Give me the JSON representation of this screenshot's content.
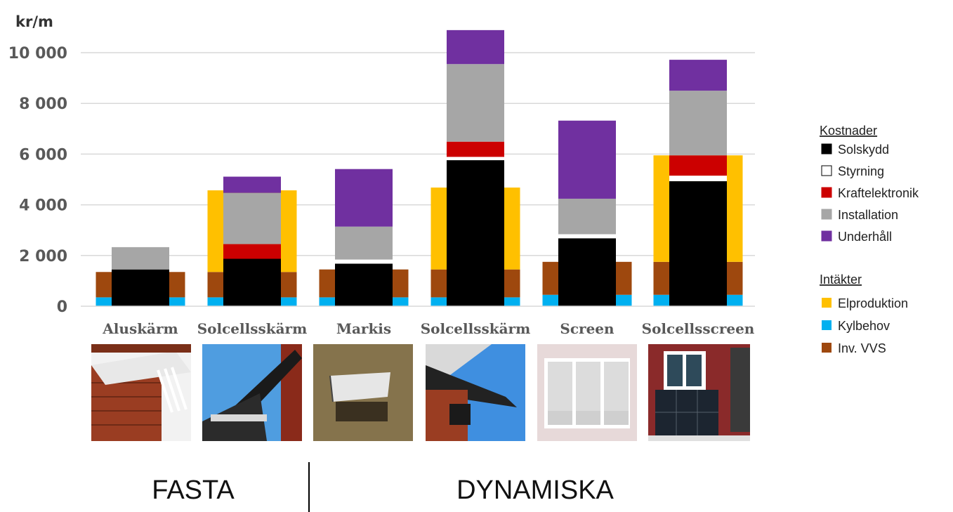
{
  "chart_data": {
    "type": "bar",
    "stacked": true,
    "ylabel": "kr/m",
    "ylim": [
      0,
      11000
    ],
    "yticks": [
      "0",
      "2 000",
      "4 000",
      "6 000",
      "8 000",
      "10 000"
    ],
    "ytick_values": [
      0,
      2000,
      4000,
      6000,
      8000,
      10000
    ],
    "grid": true,
    "categories": [
      "Aluskärm",
      "Solcellsskärm",
      "Markis",
      "Solcellsskärm",
      "Screen",
      "Solcellsscreen"
    ],
    "groups": [
      {
        "label": "FASTA",
        "categories": [
          0,
          1
        ]
      },
      {
        "label": "DYNAMISKA",
        "categories": [
          2,
          3,
          4,
          5
        ]
      }
    ],
    "legend": {
      "placement": "right",
      "costs_title": "Kostnader",
      "income_title": "Intäkter"
    },
    "cost_series": [
      {
        "name": "Solskydd",
        "color": "#000000",
        "values": [
          1450,
          1870,
          1680,
          5760,
          2680,
          4930
        ]
      },
      {
        "name": "Styrning",
        "color": "#ffffff",
        "values": [
          0,
          0,
          160,
          130,
          160,
          220
        ]
      },
      {
        "name": "Kraftelektronik",
        "color": "#cc0000",
        "values": [
          0,
          580,
          0,
          600,
          0,
          800
        ]
      },
      {
        "name": "Installation",
        "color": "#a6a6a6",
        "values": [
          880,
          2020,
          1300,
          3060,
          1400,
          2550
        ]
      },
      {
        "name": "Underhåll",
        "color": "#7030a0",
        "values": [
          0,
          640,
          2270,
          1340,
          3080,
          1220
        ]
      }
    ],
    "income_series": [
      {
        "name": "Elproduktion",
        "color": "#ffc000",
        "values": [
          0,
          3220,
          0,
          3230,
          0,
          4200
        ]
      },
      {
        "name": "Kylbehov",
        "color": "#00b0f0",
        "values": [
          350,
          350,
          350,
          350,
          450,
          450
        ]
      },
      {
        "name": "Inv. VVS",
        "color": "#9e480e",
        "values": [
          1000,
          1000,
          1100,
          1100,
          1300,
          1300
        ]
      }
    ]
  },
  "photos": [
    {
      "name": "photo-aluskarm"
    },
    {
      "name": "photo-solcellsskarm-fast"
    },
    {
      "name": "photo-markis"
    },
    {
      "name": "photo-solcellsskarm-dynamisk"
    },
    {
      "name": "photo-screen"
    },
    {
      "name": "photo-solcellsscreen"
    }
  ]
}
